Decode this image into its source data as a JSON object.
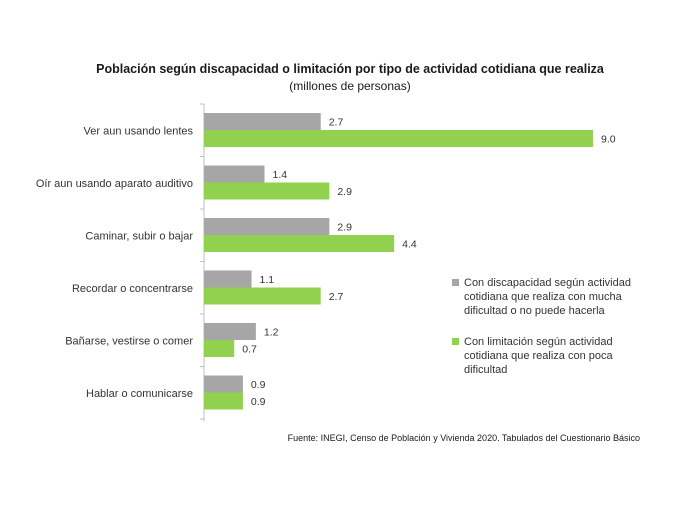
{
  "chart_data": {
    "type": "bar",
    "orientation": "horizontal",
    "title": "Población según discapacidad o limitación por tipo de actividad cotidiana que realiza",
    "subtitle": "(millones de personas)",
    "categories": [
      "Ver aun usando lentes",
      "Oír aun usando aparato auditivo",
      "Caminar, subir o bajar",
      "Recordar o concentrarse",
      "Bañarse, vestirse o comer",
      "Hablar o comunicarse"
    ],
    "series": [
      {
        "name": "Con discapacidad según actividad cotidiana que realiza con mucha dificultad o no puede hacerla",
        "color": "#a6a6a6",
        "values": [
          2.7,
          1.4,
          2.9,
          1.1,
          1.2,
          0.9
        ]
      },
      {
        "name": "Con limitación según actividad cotidiana que realiza con poca dificultad",
        "color": "#92d050",
        "values": [
          9.0,
          2.9,
          4.4,
          2.7,
          0.7,
          0.9
        ]
      }
    ],
    "xlim": [
      0,
      9.0
    ],
    "value_labels": true,
    "legend_position": "right",
    "source": "Fuente: INEGI,  Censo de Población y Vivienda 2020. Tabulados del Cuestionario Básico"
  }
}
